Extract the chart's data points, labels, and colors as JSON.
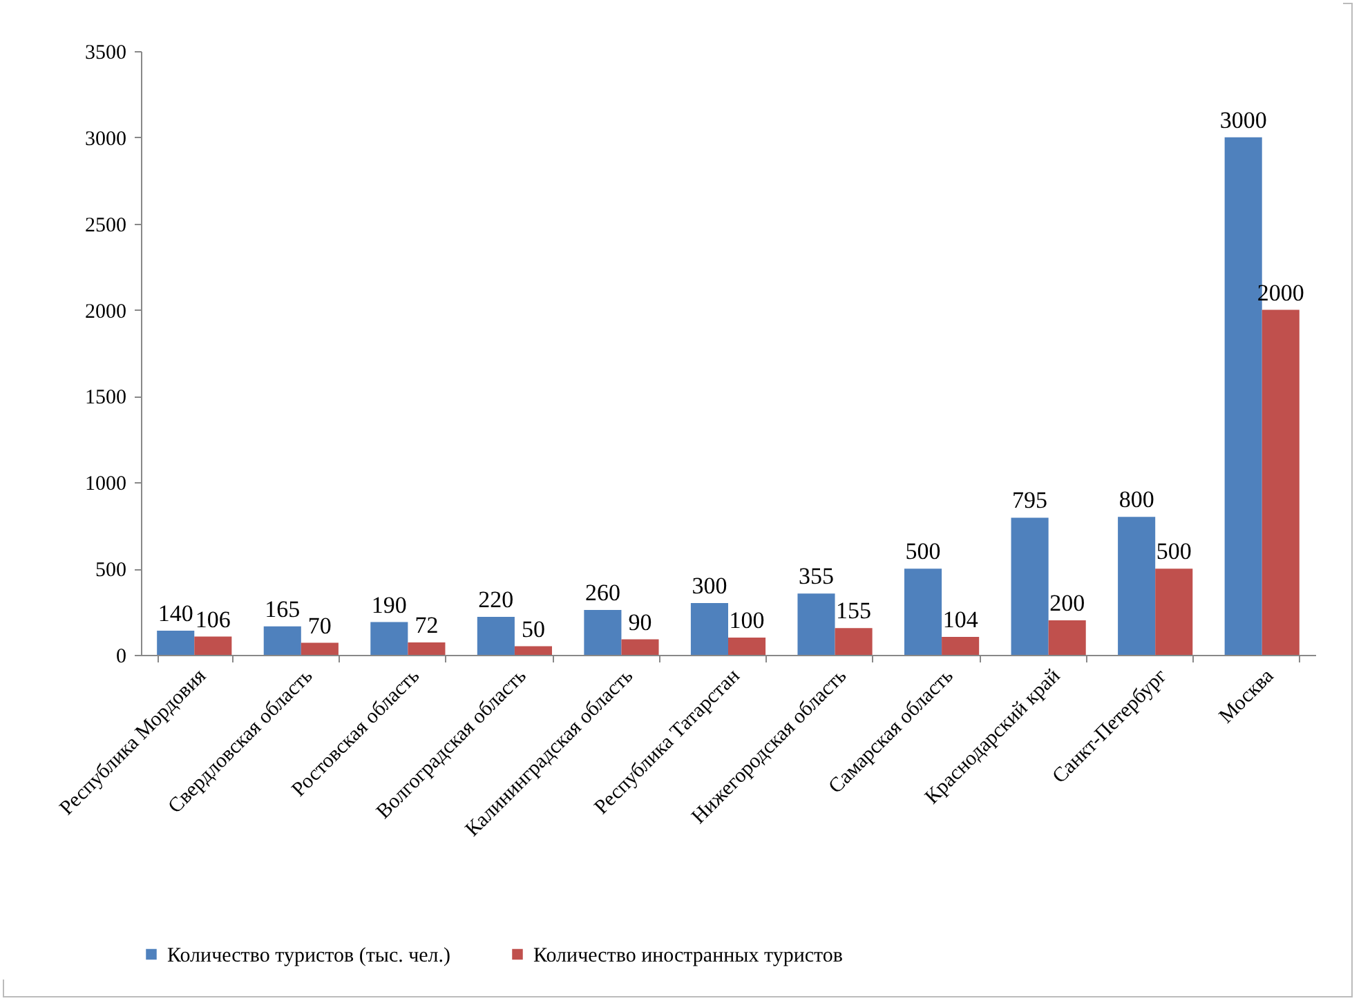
{
  "chart_data": {
    "type": "bar",
    "categories": [
      "Республика Мордовия",
      "Свердловская область",
      "Ростовская область",
      "Волгоградская область",
      "Калининградская область",
      "Республика  Татарстан",
      "Нижегородская область",
      "Самарская область",
      "Краснодарский край",
      "Санкт-Петербург",
      "Москва"
    ],
    "series": [
      {
        "name": "Количество туристов (тыс. чел.)",
        "color": "#4f81bd",
        "values": [
          140,
          165,
          190,
          220,
          260,
          300,
          355,
          500,
          795,
          800,
          3000
        ]
      },
      {
        "name": "Количество иностранных туристов",
        "color": "#c0504d",
        "values": [
          106,
          70,
          72,
          50,
          90,
          100,
          155,
          104,
          200,
          500,
          2000
        ]
      }
    ],
    "ylim": [
      0,
      3500
    ],
    "yticks": [
      0,
      500,
      1000,
      1500,
      2000,
      2500,
      3000,
      3500
    ],
    "data_labels": true,
    "legend": "bottom"
  }
}
